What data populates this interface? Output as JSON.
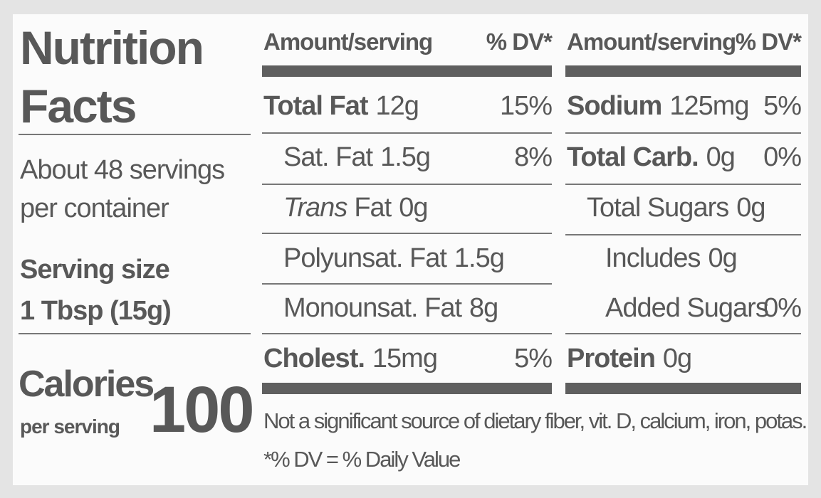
{
  "label": {
    "title_lines": [
      "Nutrition",
      "Facts"
    ],
    "servings_lines": [
      "About 48 servings",
      "per container"
    ],
    "serving_size": {
      "label": "Serving size",
      "value": "1 Tbsp (15g)"
    },
    "calories": {
      "label": "Calories",
      "sublabel": "per serving",
      "value": 100
    },
    "columns": [
      {
        "header": {
          "amount": "Amount/serving",
          "dv": "% DV*"
        },
        "rows": [
          {
            "name": "Total Fat",
            "amount": "12g",
            "dv": "15%",
            "bold": true,
            "indent": 0
          },
          {
            "name": "Sat. Fat",
            "amount": "1.5g",
            "dv": "8%",
            "indent": 1
          },
          {
            "name_italic": "Trans",
            "name": "Fat",
            "amount": "0g",
            "indent": 1
          },
          {
            "name": "Polyunsat. Fat",
            "amount": "1.5g",
            "indent": 1
          },
          {
            "name": "Monounsat. Fat",
            "amount": "8g",
            "indent": 1
          },
          {
            "name": "Cholest.",
            "amount": "15mg",
            "dv": "5%",
            "bold": true,
            "indent": 0
          }
        ]
      },
      {
        "header": {
          "amount": "Amount/serving",
          "dv": "% DV*"
        },
        "rows": [
          {
            "name": "Sodium",
            "amount": "125mg",
            "dv": "5%",
            "bold": true,
            "indent": 0
          },
          {
            "name": "Total Carb.",
            "amount": "0g",
            "dv": "0%",
            "bold": true,
            "indent": 0
          },
          {
            "name": "Total Sugars",
            "amount": "0g",
            "indent": 1
          },
          {
            "name": "Includes",
            "amount": "0g",
            "indent": 2
          },
          {
            "name": "Added Sugars",
            "dv": "0%",
            "indent": 2
          },
          {
            "name": "Protein",
            "amount": "0g",
            "bold": true,
            "indent": 0
          }
        ]
      }
    ],
    "footnotes": [
      "Not a significant source of dietary fiber, vit. D, calcium, iron, potas.",
      "*% DV = % Daily Value"
    ]
  }
}
